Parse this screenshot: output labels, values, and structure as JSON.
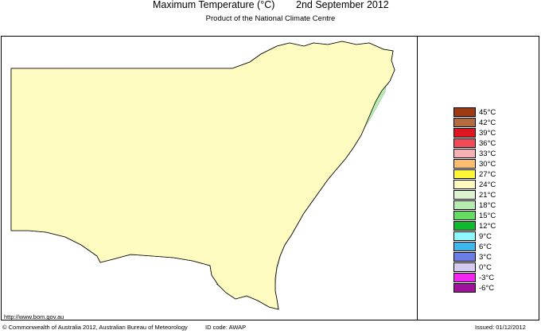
{
  "title": {
    "left": "Maximum Temperature (°C)",
    "right": "2nd September 2012"
  },
  "subtitle": "Product of the National Climate Centre",
  "url": "http://www.bom.gov.au",
  "footer": {
    "copyright": "© Commonwealth of Australia 2012, Australian Bureau of Meteorology",
    "id_code": "ID code: AWAP",
    "issued": "Issued: 01/12/2012"
  },
  "legend": [
    {
      "label": "45°C",
      "color": "#9c3b12"
    },
    {
      "label": "42°C",
      "color": "#b56b3e"
    },
    {
      "label": "39°C",
      "color": "#e0151f"
    },
    {
      "label": "36°C",
      "color": "#f04a57"
    },
    {
      "label": "33°C",
      "color": "#f7b1b4"
    },
    {
      "label": "30°C",
      "color": "#fdbd6e"
    },
    {
      "label": "27°C",
      "color": "#fdf53a"
    },
    {
      "label": "24°C",
      "color": "#fdfbc0"
    },
    {
      "label": "21°C",
      "color": "#ddf3cf"
    },
    {
      "label": "18°C",
      "color": "#b8ebb0"
    },
    {
      "label": "15°C",
      "color": "#66dc62"
    },
    {
      "label": "12°C",
      "color": "#0fbb2c"
    },
    {
      "label": "9°C",
      "color": "#8ff8fd"
    },
    {
      "label": "6°C",
      "color": "#3cb8ef"
    },
    {
      "label": "3°C",
      "color": "#6a7ee6"
    },
    {
      "label": "0°C",
      "color": "#d5cbf0"
    },
    {
      "label": "-3°C",
      "color": "#f226f0"
    },
    {
      "label": "-6°C",
      "color": "#a0119c"
    }
  ],
  "map_colors": {
    "c27": "#fdf53a",
    "c24": "#fdfbc0",
    "c21": "#ddf3cf",
    "c18": "#b8ebb0",
    "c15": "#66dc62",
    "c12": "#0fbb2c",
    "c9": "#8ff8fd",
    "c6": "#3cb8ef"
  }
}
